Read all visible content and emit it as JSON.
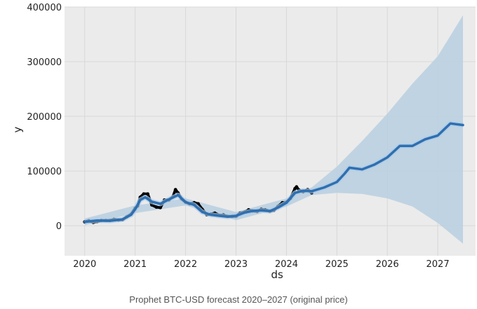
{
  "caption": "Prophet BTC-USD forecast 2020–2027 (original price)",
  "colors": {
    "plot_background": "#ebebeb",
    "grid": "#d8d8d8",
    "actual_points": "#000000",
    "forecast_line": "#2f6fb0",
    "history_band": "#a9cbe8",
    "uncertainty_band": "#b8cfe0"
  },
  "chart_data": {
    "type": "line",
    "title": "",
    "xlabel": "ds",
    "ylabel": "y",
    "xlim": [
      2019.6,
      2027.75
    ],
    "ylim": [
      -55000,
      400000
    ],
    "grid": true,
    "legend": "none",
    "x_ticks": [
      "2020",
      "2021",
      "2022",
      "2023",
      "2024",
      "2025",
      "2026",
      "2027"
    ],
    "y_ticks": [
      "0",
      "100000",
      "200000",
      "300000",
      "400000"
    ],
    "y_tick_values": [
      0,
      100000,
      200000,
      300000,
      400000
    ],
    "series": [
      {
        "role": "actual",
        "type": "scatter",
        "x": [
          2020.0,
          2020.08,
          2020.17,
          2020.25,
          2020.33,
          2020.42,
          2020.5,
          2020.58,
          2020.67,
          2020.75,
          2020.83,
          2020.92,
          2021.0,
          2021.05,
          2021.1,
          2021.17,
          2021.25,
          2021.33,
          2021.42,
          2021.5,
          2021.58,
          2021.67,
          2021.75,
          2021.8,
          2021.85,
          2021.92,
          2022.0,
          2022.08,
          2022.17,
          2022.25,
          2022.33,
          2022.42,
          2022.5,
          2022.58,
          2022.67,
          2022.75,
          2022.83,
          2022.92,
          2023.0,
          2023.08,
          2023.17,
          2023.25,
          2023.33,
          2023.42,
          2023.5,
          2023.58,
          2023.67,
          2023.75,
          2023.83,
          2023.92,
          2024.0,
          2024.08,
          2024.17,
          2024.2,
          2024.25,
          2024.33,
          2024.42,
          2024.5
        ],
        "y": [
          7000,
          9000,
          6000,
          7500,
          9500,
          9500,
          9500,
          11500,
          10500,
          11000,
          16000,
          21000,
          32000,
          36000,
          52000,
          58000,
          58000,
          38000,
          34000,
          33000,
          47000,
          47000,
          53000,
          66000,
          60000,
          49000,
          43000,
          40000,
          42000,
          40000,
          30000,
          20000,
          21000,
          23000,
          19000,
          19500,
          17000,
          16800,
          17000,
          23000,
          25000,
          29000,
          27000,
          26000,
          30000,
          29000,
          26500,
          28000,
          35000,
          42000,
          43000,
          50000,
          68000,
          71000,
          65000,
          62000,
          66000,
          60000
        ]
      },
      {
        "role": "forecast",
        "type": "line",
        "x": [
          2020.0,
          2020.25,
          2020.5,
          2020.75,
          2020.92,
          2021.0,
          2021.1,
          2021.2,
          2021.33,
          2021.5,
          2021.67,
          2021.85,
          2022.0,
          2022.17,
          2022.33,
          2022.5,
          2022.67,
          2022.83,
          2023.0,
          2023.17,
          2023.33,
          2023.5,
          2023.67,
          2023.83,
          2024.0,
          2024.17,
          2024.33,
          2024.5,
          2024.75,
          2025.0,
          2025.15,
          2025.25,
          2025.5,
          2025.75,
          2026.0,
          2026.25,
          2026.5,
          2026.75,
          2027.0,
          2027.25,
          2027.5
        ],
        "y": [
          7000,
          9500,
          9000,
          11500,
          20000,
          30000,
          47000,
          52000,
          44000,
          40000,
          48000,
          56000,
          43000,
          38000,
          25000,
          20000,
          18000,
          16500,
          18000,
          24000,
          27000,
          28000,
          26500,
          33000,
          42000,
          60000,
          64000,
          63000,
          70000,
          80000,
          95000,
          106000,
          103000,
          112000,
          125000,
          146000,
          146000,
          158000,
          165000,
          187000,
          184000
        ]
      },
      {
        "role": "uncertainty",
        "type": "area",
        "x": [
          2020.0,
          2021.0,
          2022.0,
          2023.0,
          2024.0,
          2024.5,
          2025.0,
          2025.5,
          2026.0,
          2026.5,
          2027.0,
          2027.5
        ],
        "upper": [
          13000,
          37000,
          50000,
          25000,
          50000,
          70000,
          108000,
          155000,
          205000,
          260000,
          310000,
          385000
        ],
        "lower": [
          1000,
          23000,
          37000,
          10000,
          35000,
          56000,
          60000,
          58000,
          50000,
          35000,
          5000,
          -33000
        ]
      }
    ]
  }
}
